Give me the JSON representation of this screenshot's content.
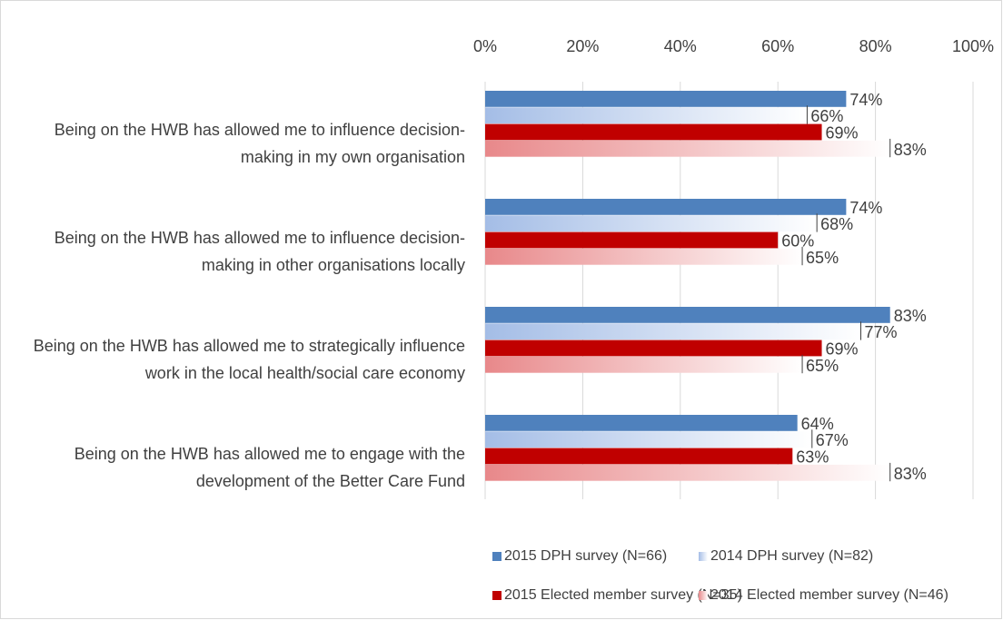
{
  "chart_data": {
    "type": "bar",
    "orientation": "horizontal",
    "categories": [
      "Being on the HWB has allowed me to influence decision-making in my own organisation",
      "Being on the HWB has allowed me to influence decision-making in other organisations locally",
      "Being on the HWB has allowed me to strategically influence work in the local health/social care economy",
      "Being on the HWB has allowed me to engage with the development of the Better Care Fund"
    ],
    "series": [
      {
        "name": "2015 DPH survey (N=66)",
        "color": "#4f81bd",
        "gradient": false,
        "values": [
          74,
          74,
          83,
          64
        ],
        "value_labels": [
          "74%",
          "74%",
          "83%",
          "64%"
        ]
      },
      {
        "name": "2014 DPH survey (N=82)",
        "color": "#a4bde6",
        "gradient": true,
        "values": [
          66,
          68,
          77,
          67
        ],
        "value_labels": [
          "66%",
          "68%",
          "77%",
          "67%"
        ]
      },
      {
        "name": "2015 Elected member survey (N=35)",
        "color": "#c00000",
        "gradient": false,
        "values": [
          69,
          60,
          69,
          63
        ],
        "value_labels": [
          "69%",
          "60%",
          "69%",
          "63%"
        ]
      },
      {
        "name": "2014 Elected member survey (N=46)",
        "color": "#e8888a",
        "gradient": true,
        "values": [
          83,
          65,
          65,
          83
        ],
        "value_labels": [
          "83%",
          "65%",
          "65%",
          "83%"
        ]
      }
    ],
    "xlim": [
      0,
      100
    ],
    "xticks": [
      {
        "value": 0,
        "label": "0%"
      },
      {
        "value": 20,
        "label": "20%"
      },
      {
        "value": 40,
        "label": "40%"
      },
      {
        "value": 60,
        "label": "60%"
      },
      {
        "value": 80,
        "label": "80%"
      },
      {
        "value": 100,
        "label": "100%"
      }
    ],
    "grid": true,
    "legend": "bottom"
  }
}
